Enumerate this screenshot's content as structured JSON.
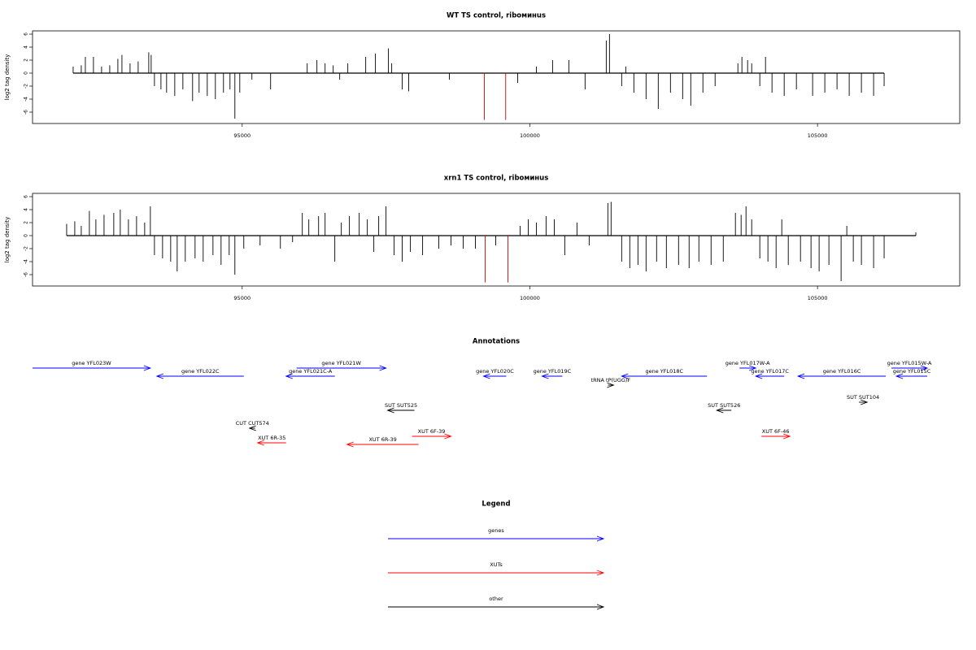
{
  "chart_data": [
    {
      "type": "spike",
      "title": "WT TS control, riboминus",
      "y_label": "log2 tag density",
      "xlim": [
        91356,
        107472
      ],
      "ylim": [
        -7.75,
        6.5
      ],
      "xticks": [
        95000,
        100000,
        105000
      ],
      "yticks": [
        -6,
        -4,
        -2,
        0,
        2,
        4,
        6
      ],
      "series": [
        {
          "color": "#000000",
          "x": [
            92062,
            92203,
            92274,
            92415,
            92556,
            92698,
            92839,
            92910,
            93051,
            93192,
            93376,
            93418,
            93475,
            93588,
            93686,
            93828,
            93969,
            94138,
            94251,
            94393,
            94534,
            94675,
            94788,
            94873,
            94958,
            95169,
            95494,
            96130,
            96299,
            96441,
            96582,
            96695,
            96836,
            97147,
            97316,
            97542,
            97599,
            97782,
            97895,
            98602,
            99788,
            100113,
            100395,
            100678,
            100960,
            101328,
            101384,
            101596,
            101667,
            101808,
            102020,
            102232,
            102444,
            102656,
            102797,
            103008,
            103220,
            103616,
            103686,
            103785,
            103856,
            104096,
            103997,
            104209,
            104421,
            104633,
            104915,
            105127,
            105339,
            105551,
            105763,
            105975,
            106158
          ],
          "values": [
            1,
            1.2,
            2.5,
            2.5,
            1,
            1.2,
            2.2,
            2.8,
            1.5,
            1.8,
            3.2,
            2.8,
            -2,
            -2.5,
            -3,
            -3.5,
            -2.5,
            -4.3,
            -3,
            -3.5,
            -4,
            -3,
            -2.5,
            -7,
            -3,
            -1,
            -2.5,
            1.5,
            2,
            1.5,
            1.2,
            -1,
            1.5,
            2.5,
            3,
            3.8,
            1.5,
            -2.5,
            -2.8,
            -1,
            -1.5,
            1,
            2,
            2,
            -2.5,
            5,
            6,
            -2,
            1,
            -3,
            -4,
            -5.5,
            -3,
            -4,
            -5,
            -3,
            -2,
            1.5,
            2.5,
            2,
            1.5,
            2.5,
            -2,
            -3,
            -3.5,
            -2.5,
            -3.5,
            -3,
            -2.5,
            -3.5,
            -3,
            -3.5,
            -2
          ]
        },
        {
          "color": "#d00000",
          "x": [
            99210,
            99580
          ],
          "values": [
            -7.2,
            -7.2
          ]
        }
      ]
    },
    {
      "type": "spike",
      "title": "xrn1 TS control, riboминus",
      "y_label": "log2 tag density",
      "xlim": [
        91356,
        107472
      ],
      "ylim": [
        -7.75,
        6.5
      ],
      "xticks": [
        95000,
        100000,
        105000
      ],
      "yticks": [
        -6,
        -4,
        -2,
        0,
        2,
        4,
        6
      ],
      "series": [
        {
          "color": "#000000",
          "x": [
            91949,
            92090,
            92203,
            92344,
            92457,
            92599,
            92768,
            92881,
            93023,
            93164,
            93305,
            93404,
            93475,
            93616,
            93757,
            93870,
            94011,
            94181,
            94322,
            94492,
            94633,
            94774,
            94873,
            95028,
            95311,
            95664,
            95876,
            96045,
            96158,
            96328,
            96441,
            96610,
            96723,
            96864,
            97034,
            97175,
            97288,
            97373,
            97500,
            97641,
            97782,
            97924,
            98136,
            98418,
            98630,
            98842,
            99054,
            99407,
            99831,
            99972,
            100113,
            100282,
            100424,
            100607,
            100819,
            101031,
            101356,
            101412,
            101596,
            101737,
            101879,
            102020,
            102203,
            102373,
            102585,
            102768,
            102938,
            103150,
            103362,
            103573,
            103672,
            103757,
            103856,
            103997,
            104138,
            104280,
            104379,
            104492,
            104704,
            104887,
            105028,
            105198,
            105410,
            105509,
            105622,
            105763,
            105975,
            106158,
            106709
          ],
          "values": [
            1.8,
            2.2,
            1.5,
            3.8,
            2.5,
            3.2,
            3.5,
            4,
            2.5,
            3,
            2,
            4.5,
            -3,
            -3.5,
            -4,
            -5.5,
            -4,
            -3.5,
            -4,
            -3,
            -4.5,
            -3,
            -6,
            -2,
            -1.5,
            -2,
            -1,
            3.5,
            2.5,
            3,
            3.5,
            -4,
            2,
            3,
            3.5,
            2.5,
            -2.5,
            3,
            4.5,
            -3,
            -4,
            -2.5,
            -3,
            -2,
            -1.5,
            -2,
            -2,
            -1.5,
            1.5,
            2.5,
            2,
            3,
            2.5,
            -3,
            2,
            -1.5,
            5,
            5.2,
            -4,
            -5,
            -4.5,
            -5.5,
            -4,
            -5,
            -4.5,
            -5,
            -4,
            -4.5,
            -4,
            3.5,
            3.2,
            4.5,
            2.5,
            -3.5,
            -4,
            -5,
            2.5,
            -4.5,
            -4,
            -5,
            -5.5,
            -4.5,
            -7,
            1.5,
            -4,
            -4.5,
            -5,
            -3.5,
            0.5
          ]
        },
        {
          "color": "#d00000",
          "x": [
            99223,
            99619
          ],
          "values": [
            -7.2,
            -7.2
          ]
        }
      ]
    }
  ],
  "annotations": {
    "title": "Annotations",
    "features": [
      {
        "label": "gene YFL023W",
        "start": 91356,
        "end": 93404,
        "strand": "+",
        "color": "#0000ff"
      },
      {
        "label": "gene YFL022C",
        "start": 93517,
        "end": 95028,
        "strand": "-",
        "color": "#0000ff"
      },
      {
        "label": "gene YFL021W",
        "start": 95946,
        "end": 97500,
        "strand": "+",
        "color": "#0000ff"
      },
      {
        "label": "gene YFL021C-A",
        "start": 95763,
        "end": 96610,
        "strand": "-",
        "color": "#0000ff"
      },
      {
        "label": "gene YFL020C",
        "start": 99195,
        "end": 99590,
        "strand": "-",
        "color": "#0000ff"
      },
      {
        "label": "gene YFL019C",
        "start": 100212,
        "end": 100565,
        "strand": "-",
        "color": "#0000ff"
      },
      {
        "label": "gene YFL018C",
        "start": 101596,
        "end": 103079,
        "strand": "-",
        "color": "#0000ff"
      },
      {
        "label": "gene YFL017W-A",
        "start": 103644,
        "end": 103926,
        "strand": "+",
        "color": "#0000ff"
      },
      {
        "label": "gene YFL017C",
        "start": 103926,
        "end": 104421,
        "strand": "-",
        "color": "#0000ff"
      },
      {
        "label": "gene YFL016C",
        "start": 104661,
        "end": 106186,
        "strand": "-",
        "color": "#0000ff"
      },
      {
        "label": "gene YFL015W-A",
        "start": 106285,
        "end": 106907,
        "strand": "+",
        "color": "#0000ff"
      },
      {
        "label": "gene YFL015C",
        "start": 106370,
        "end": 106907,
        "strand": "-",
        "color": "#0000ff"
      },
      {
        "label": "tRNA tP(UGG)F",
        "start": 101356,
        "end": 101455,
        "strand": "+",
        "color": "#000000"
      },
      {
        "label": "SUT SUT525",
        "start": 97528,
        "end": 97994,
        "strand": "-",
        "color": "#000000"
      },
      {
        "label": "SUT SUT526",
        "start": 103249,
        "end": 103503,
        "strand": "-",
        "color": "#000000"
      },
      {
        "label": "SUT SUT104",
        "start": 105720,
        "end": 105862,
        "strand": "+",
        "color": "#000000"
      },
      {
        "label": "CUT CUT574",
        "start": 95127,
        "end": 95226,
        "strand": "-",
        "color": "#000000"
      },
      {
        "label": "XUT 6R-35",
        "start": 95268,
        "end": 95763,
        "strand": "-",
        "color": "#ff0000"
      },
      {
        "label": "XUT 6R-39",
        "start": 96822,
        "end": 98065,
        "strand": "-",
        "color": "#ff0000"
      },
      {
        "label": "XUT 6F-39",
        "start": 97952,
        "end": 98630,
        "strand": "+",
        "color": "#ff0000"
      },
      {
        "label": "XUT 6F-46",
        "start": 104025,
        "end": 104520,
        "strand": "+",
        "color": "#ff0000"
      }
    ]
  },
  "legend": {
    "title": "Legend",
    "items": [
      {
        "label": "genes",
        "color": "#0000ff"
      },
      {
        "label": "XUTs",
        "color": "#ff0000"
      },
      {
        "label": "other",
        "color": "#000000"
      }
    ]
  }
}
